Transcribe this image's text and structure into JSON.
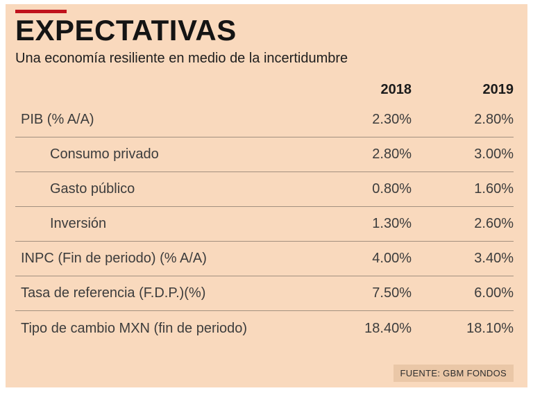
{
  "title": "EXPECTATIVAS",
  "subtitle": "Una economía resiliente en medio de la incertidumbre",
  "source": "FUENTE: GBM FONDOS",
  "accent_color": "#c0121c",
  "background_color": "#f9d9bd",
  "chart_data": {
    "type": "table",
    "columns": [
      "2018",
      "2019"
    ],
    "rows": [
      {
        "label": "PIB (% A/A)",
        "indent": false,
        "values": [
          "2.30%",
          "2.80%"
        ]
      },
      {
        "label": "Consumo privado",
        "indent": true,
        "values": [
          "2.80%",
          "3.00%"
        ]
      },
      {
        "label": "Gasto público",
        "indent": true,
        "values": [
          "0.80%",
          "1.60%"
        ]
      },
      {
        "label": "Inversión",
        "indent": true,
        "values": [
          "1.30%",
          "2.60%"
        ]
      },
      {
        "label": "INPC (Fin de periodo) (% A/A)",
        "indent": false,
        "values": [
          "4.00%",
          "3.40%"
        ]
      },
      {
        "label": "Tasa de referencia (F.D.P.)(%)",
        "indent": false,
        "values": [
          "7.50%",
          "6.00%"
        ]
      },
      {
        "label": "Tipo de cambio MXN (fin de periodo)",
        "indent": false,
        "values": [
          "18.40%",
          "18.10%"
        ]
      }
    ]
  }
}
